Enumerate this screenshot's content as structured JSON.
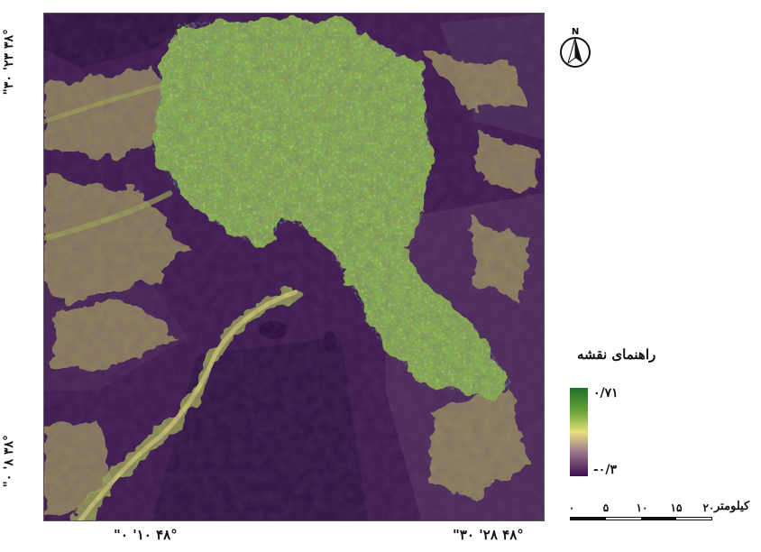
{
  "map": {
    "index_name": "",
    "latitude_labels": [
      "۳۸° ۲۳' ۳۰\"",
      "۳۸° ۸' ۰\""
    ],
    "longitude_labels": [
      "۴۸° ۱۰' ۰\"",
      "۴۸° ۲۸' ۳۰\""
    ],
    "north_label": "N",
    "colors": {
      "background_purple": "#3d1a4f",
      "low": "#3b0f4f",
      "mid": "#e6e07a",
      "high": "#1f6f2a"
    }
  },
  "legend": {
    "title": "راهنمای نقشه",
    "max_value": "۰/۷۱",
    "min_value": "-۰/۳"
  },
  "scale": {
    "unit": "کیلومتر",
    "ticks": [
      "۰",
      "۵",
      "۱۰",
      "۱۵",
      "۲۰"
    ]
  }
}
